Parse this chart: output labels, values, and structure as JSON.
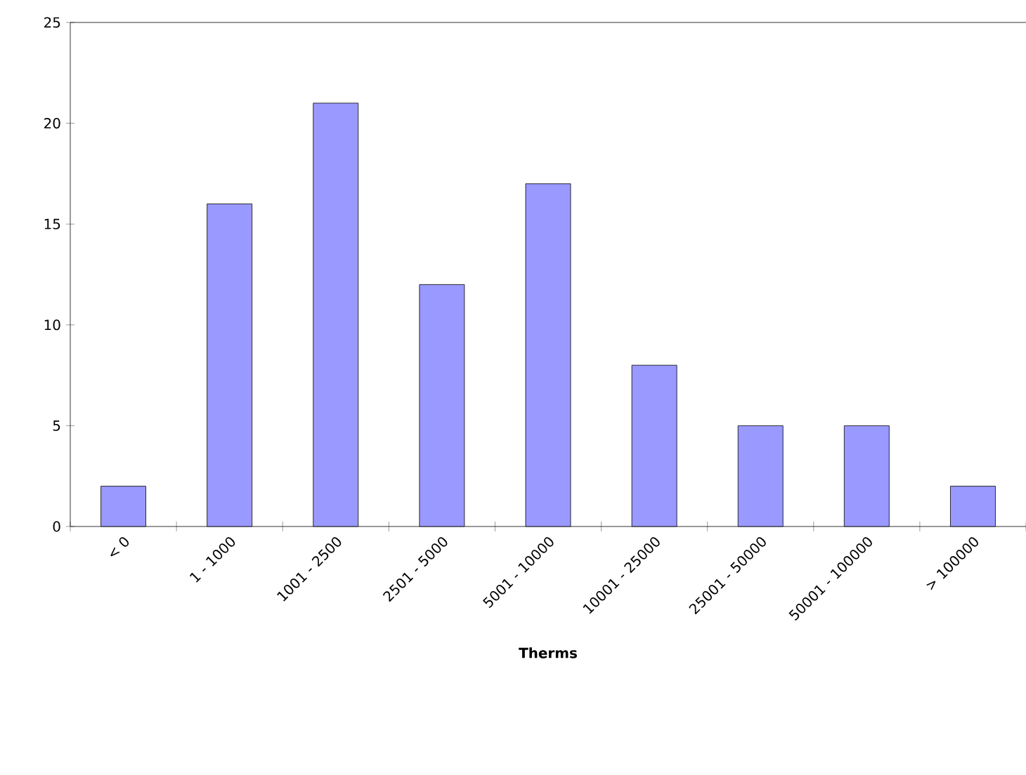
{
  "chart_data": {
    "type": "bar",
    "xlabel": "Therms",
    "categories": [
      "< 0",
      "1 - 1000",
      "1001 - 2500",
      "2501 - 5000",
      "5001 - 10000",
      "10001 - 25000",
      "25001 - 50000",
      "50001 - 100000",
      "> 100000"
    ],
    "values": [
      2,
      16,
      21,
      12,
      17,
      8,
      5,
      5,
      2
    ],
    "color": "#9999ff",
    "ylim": [
      0,
      25
    ],
    "yticks": [
      0,
      5,
      10,
      15,
      20,
      25
    ]
  }
}
